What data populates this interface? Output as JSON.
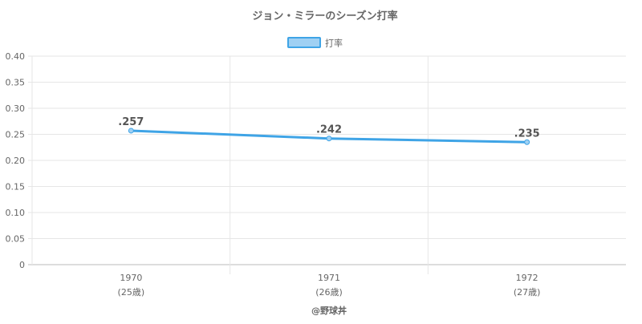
{
  "chart_data": {
    "type": "line",
    "title": "ジョン・ミラーのシーズン打率",
    "categories": [
      "1970",
      "1971",
      "1972"
    ],
    "age_labels": [
      "(25歳)",
      "(26歳)",
      "(27歳)"
    ],
    "series": [
      {
        "name": "打率",
        "values": [
          0.257,
          0.242,
          0.235
        ],
        "data_labels": [
          ".257",
          ".242",
          ".235"
        ],
        "color": "#3fa4e6",
        "fill": "#9fd0f3"
      }
    ],
    "ylim": [
      0,
      0.4
    ],
    "yticks": [
      0,
      0.05,
      0.1,
      0.15,
      0.2,
      0.25,
      0.3,
      0.35,
      0.4
    ],
    "ytick_labels": [
      "0",
      "0.05",
      "0.10",
      "0.15",
      "0.20",
      "0.25",
      "0.30",
      "0.35",
      "0.40"
    ],
    "legend_position": "top",
    "grid": true
  },
  "footer": {
    "credit": "@野球丼"
  },
  "colors": {
    "title": "#666666",
    "tick_label": "#666666",
    "grid": "#e6e6e6",
    "axis": "#bbbbbb",
    "data_label": "#555555"
  }
}
